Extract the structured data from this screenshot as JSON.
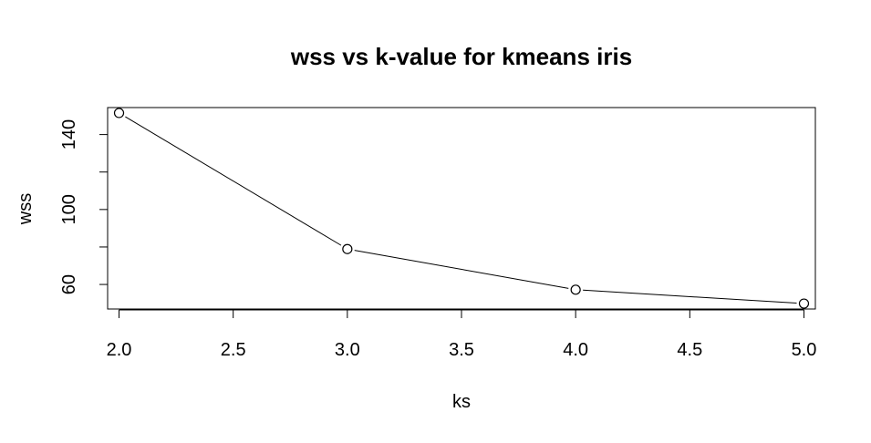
{
  "chart_data": {
    "type": "line",
    "title": "wss vs k-value for kmeans iris",
    "xlabel": "ks",
    "ylabel": "wss",
    "x": [
      2,
      3,
      4,
      5
    ],
    "series": [
      {
        "values": [
          151.5,
          78.9,
          57.2,
          49.8
        ]
      }
    ],
    "xlim": [
      1.95,
      5.05
    ],
    "ylim": [
      46.9,
      154.4
    ],
    "x_ticks": [
      "2.0",
      "2.5",
      "3.0",
      "3.5",
      "4.0",
      "4.5",
      "5.0"
    ],
    "x_tick_values": [
      2.0,
      2.5,
      3.0,
      3.5,
      4.0,
      4.5,
      5.0
    ],
    "y_ticks": [
      "60",
      "",
      "100",
      "",
      "140"
    ],
    "y_tick_values": [
      60,
      80,
      100,
      120,
      140
    ],
    "grid": false,
    "line_color": "#000000",
    "marker": "open-circle",
    "marker_color": "#000000",
    "background": "#ffffff"
  }
}
